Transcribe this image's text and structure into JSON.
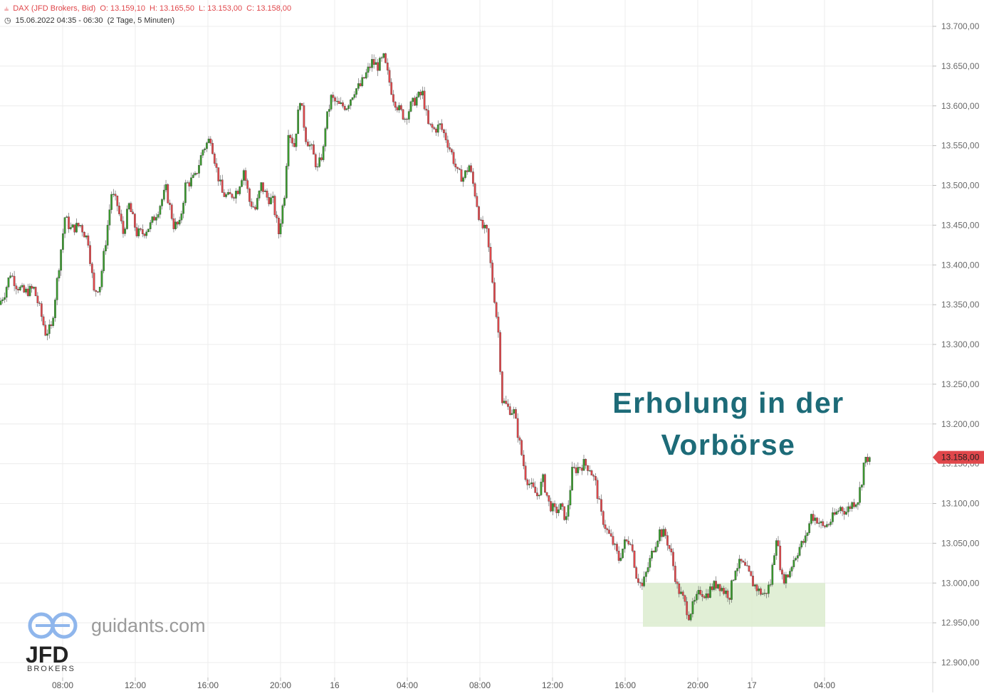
{
  "header": {
    "instrument": "DAX (JFD Brokers, Bid)",
    "open": "O: 13.159,10",
    "high": "H: 13.165,50",
    "low": "L: 13.153,00",
    "close": "C: 13.158,00",
    "date_range": "15.06.2022 04:35 - 06:30",
    "period": "(2 Tage, 5 Minuten)"
  },
  "watermark": {
    "site": "guidants.com",
    "brand": "JFD",
    "brand_sub": "BROKERS"
  },
  "colors": {
    "up": "#3a9a2e",
    "down": "#e0474b",
    "grid": "#ececec",
    "annotation": "#1d6b78",
    "zone": "#dceccf"
  },
  "chart_data": {
    "type": "candlestick",
    "title": "",
    "xlabel": "",
    "ylabel": "",
    "ylim": [
      12880,
      13730
    ],
    "yticks": [
      13700,
      13650,
      13600,
      13550,
      13500,
      13450,
      13400,
      13350,
      13300,
      13250,
      13200,
      13150,
      13100,
      13050,
      13000,
      12950,
      12900
    ],
    "ytick_labels": [
      "13.700,00",
      "13.650,00",
      "13.600,00",
      "13.550,00",
      "13.500,00",
      "13.450,00",
      "13.400,00",
      "13.350,00",
      "13.300,00",
      "13.250,00",
      "13.200,00",
      "13.150,00",
      "13.100,00",
      "13.050,00",
      "13.000,00",
      "12.950,00",
      "12.900,00"
    ],
    "xtick_labels": [
      "08:00",
      "12:00",
      "16:00",
      "20:00",
      "16",
      "04:00",
      "08:00",
      "12:00",
      "16:00",
      "20:00",
      "17",
      "04:00"
    ],
    "grid": true,
    "last_price": 13158,
    "last_price_label": "13.158,00",
    "annotation": {
      "line1": "Erholung in der",
      "line2": "Vorbörse"
    },
    "support_zone": {
      "price_from": 12945,
      "price_to": 13000,
      "time_from": "15.06. 17:00",
      "time_to": "16.06. 04:00"
    },
    "price_path": [
      [
        0,
        13350
      ],
      [
        3,
        13365
      ],
      [
        6,
        13390
      ],
      [
        9,
        13375
      ],
      [
        13,
        13365
      ],
      [
        18,
        13370
      ],
      [
        21,
        13345
      ],
      [
        24,
        13315
      ],
      [
        27,
        13320
      ],
      [
        31,
        13400
      ],
      [
        34,
        13460
      ],
      [
        37,
        13445
      ],
      [
        42,
        13450
      ],
      [
        46,
        13430
      ],
      [
        49,
        13365
      ],
      [
        52,
        13375
      ],
      [
        55,
        13430
      ],
      [
        58,
        13490
      ],
      [
        61,
        13475
      ],
      [
        64,
        13440
      ],
      [
        67,
        13475
      ],
      [
        71,
        13440
      ],
      [
        74,
        13440
      ],
      [
        78,
        13450
      ],
      [
        82,
        13470
      ],
      [
        86,
        13495
      ],
      [
        90,
        13450
      ],
      [
        93,
        13450
      ],
      [
        96,
        13500
      ],
      [
        101,
        13510
      ],
      [
        105,
        13545
      ],
      [
        109,
        13560
      ],
      [
        112,
        13520
      ],
      [
        115,
        13490
      ],
      [
        118,
        13485
      ],
      [
        121,
        13490
      ],
      [
        123,
        13495
      ],
      [
        126,
        13520
      ],
      [
        129,
        13480
      ],
      [
        132,
        13470
      ],
      [
        135,
        13500
      ],
      [
        138,
        13485
      ],
      [
        141,
        13480
      ],
      [
        144,
        13440
      ],
      [
        147,
        13490
      ],
      [
        149,
        13570
      ],
      [
        152,
        13550
      ],
      [
        155,
        13610
      ],
      [
        158,
        13560
      ],
      [
        161,
        13545
      ],
      [
        164,
        13520
      ],
      [
        167,
        13545
      ],
      [
        168,
        13575
      ],
      [
        171,
        13610
      ],
      [
        175,
        13600
      ],
      [
        179,
        13600
      ],
      [
        183,
        13620
      ],
      [
        186,
        13625
      ],
      [
        189,
        13640
      ],
      [
        192,
        13655
      ],
      [
        195,
        13650
      ],
      [
        198,
        13660
      ],
      [
        200,
        13640
      ],
      [
        203,
        13610
      ],
      [
        206,
        13595
      ],
      [
        209,
        13585
      ],
      [
        212,
        13600
      ],
      [
        215,
        13610
      ],
      [
        218,
        13615
      ],
      [
        221,
        13575
      ],
      [
        224,
        13570
      ],
      [
        227,
        13575
      ],
      [
        230,
        13560
      ],
      [
        233,
        13540
      ],
      [
        236,
        13515
      ],
      [
        239,
        13510
      ],
      [
        242,
        13525
      ],
      [
        245,
        13490
      ],
      [
        248,
        13450
      ],
      [
        251,
        13440
      ],
      [
        254,
        13380
      ],
      [
        257,
        13315
      ],
      [
        259,
        13230
      ],
      [
        262,
        13220
      ],
      [
        265,
        13215
      ],
      [
        268,
        13175
      ],
      [
        271,
        13135
      ],
      [
        274,
        13120
      ],
      [
        277,
        13110
      ],
      [
        280,
        13130
      ],
      [
        283,
        13100
      ],
      [
        286,
        13090
      ],
      [
        289,
        13095
      ],
      [
        292,
        13080
      ],
      [
        295,
        13140
      ],
      [
        298,
        13145
      ],
      [
        301,
        13150
      ],
      [
        304,
        13145
      ],
      [
        307,
        13125
      ],
      [
        310,
        13085
      ],
      [
        313,
        13065
      ],
      [
        316,
        13050
      ],
      [
        319,
        13030
      ],
      [
        322,
        13050
      ],
      [
        325,
        13055
      ],
      [
        328,
        13010
      ],
      [
        331,
        12995
      ],
      [
        334,
        13020
      ],
      [
        337,
        13045
      ],
      [
        340,
        13065
      ],
      [
        343,
        13060
      ],
      [
        346,
        13035
      ],
      [
        349,
        12995
      ],
      [
        352,
        12980
      ],
      [
        355,
        12960
      ],
      [
        358,
        12975
      ],
      [
        361,
        12990
      ],
      [
        364,
        12985
      ],
      [
        367,
        12995
      ],
      [
        370,
        13000
      ],
      [
        373,
        12990
      ],
      [
        376,
        12985
      ],
      [
        379,
        13020
      ],
      [
        382,
        13025
      ],
      [
        385,
        13015
      ],
      [
        388,
        13000
      ],
      [
        391,
        12990
      ],
      [
        394,
        12985
      ],
      [
        397,
        13000
      ],
      [
        400,
        13060
      ],
      [
        403,
        13005
      ],
      [
        406,
        13010
      ],
      [
        409,
        13030
      ],
      [
        412,
        13045
      ],
      [
        415,
        13055
      ],
      [
        418,
        13085
      ],
      [
        421,
        13080
      ],
      [
        424,
        13070
      ],
      [
        427,
        13075
      ],
      [
        430,
        13085
      ],
      [
        433,
        13095
      ],
      [
        436,
        13090
      ],
      [
        439,
        13100
      ],
      [
        442,
        13105
      ],
      [
        444,
        13130
      ],
      [
        445,
        13150
      ],
      [
        447,
        13158
      ]
    ]
  }
}
